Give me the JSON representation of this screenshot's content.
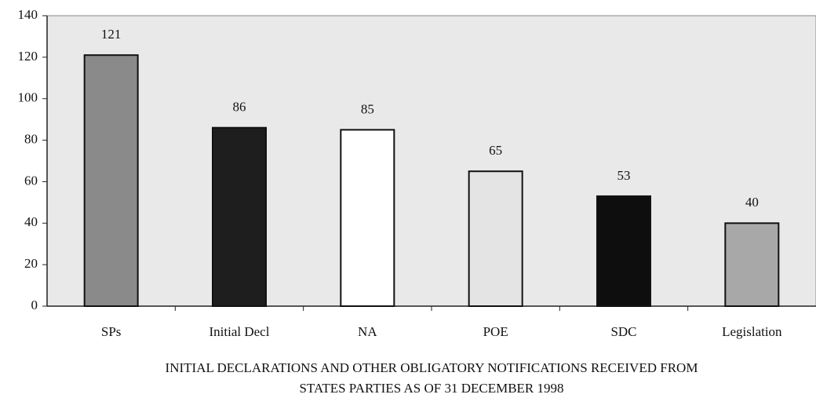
{
  "chart_data": {
    "type": "bar",
    "title": [
      "INITIAL DECLARATIONS AND OTHER OBLIGATORY NOTIFICATIONS RECEIVED FROM",
      "STATES PARTIES AS OF 31 DECEMBER 1998"
    ],
    "categories": [
      "SPs",
      "Initial Decl",
      "NA",
      "POE",
      "SDC",
      "Legislation"
    ],
    "values": [
      121,
      86,
      85,
      65,
      53,
      40
    ],
    "colors": [
      "#8a8a8a",
      "#1e1e1e",
      "#ffffff",
      "#e4e4e4",
      "#0e0e0e",
      "#a8a8a8"
    ],
    "ylim": [
      0,
      140
    ],
    "yticks": [
      0,
      20,
      40,
      60,
      80,
      100,
      120,
      140
    ],
    "grid": false
  }
}
